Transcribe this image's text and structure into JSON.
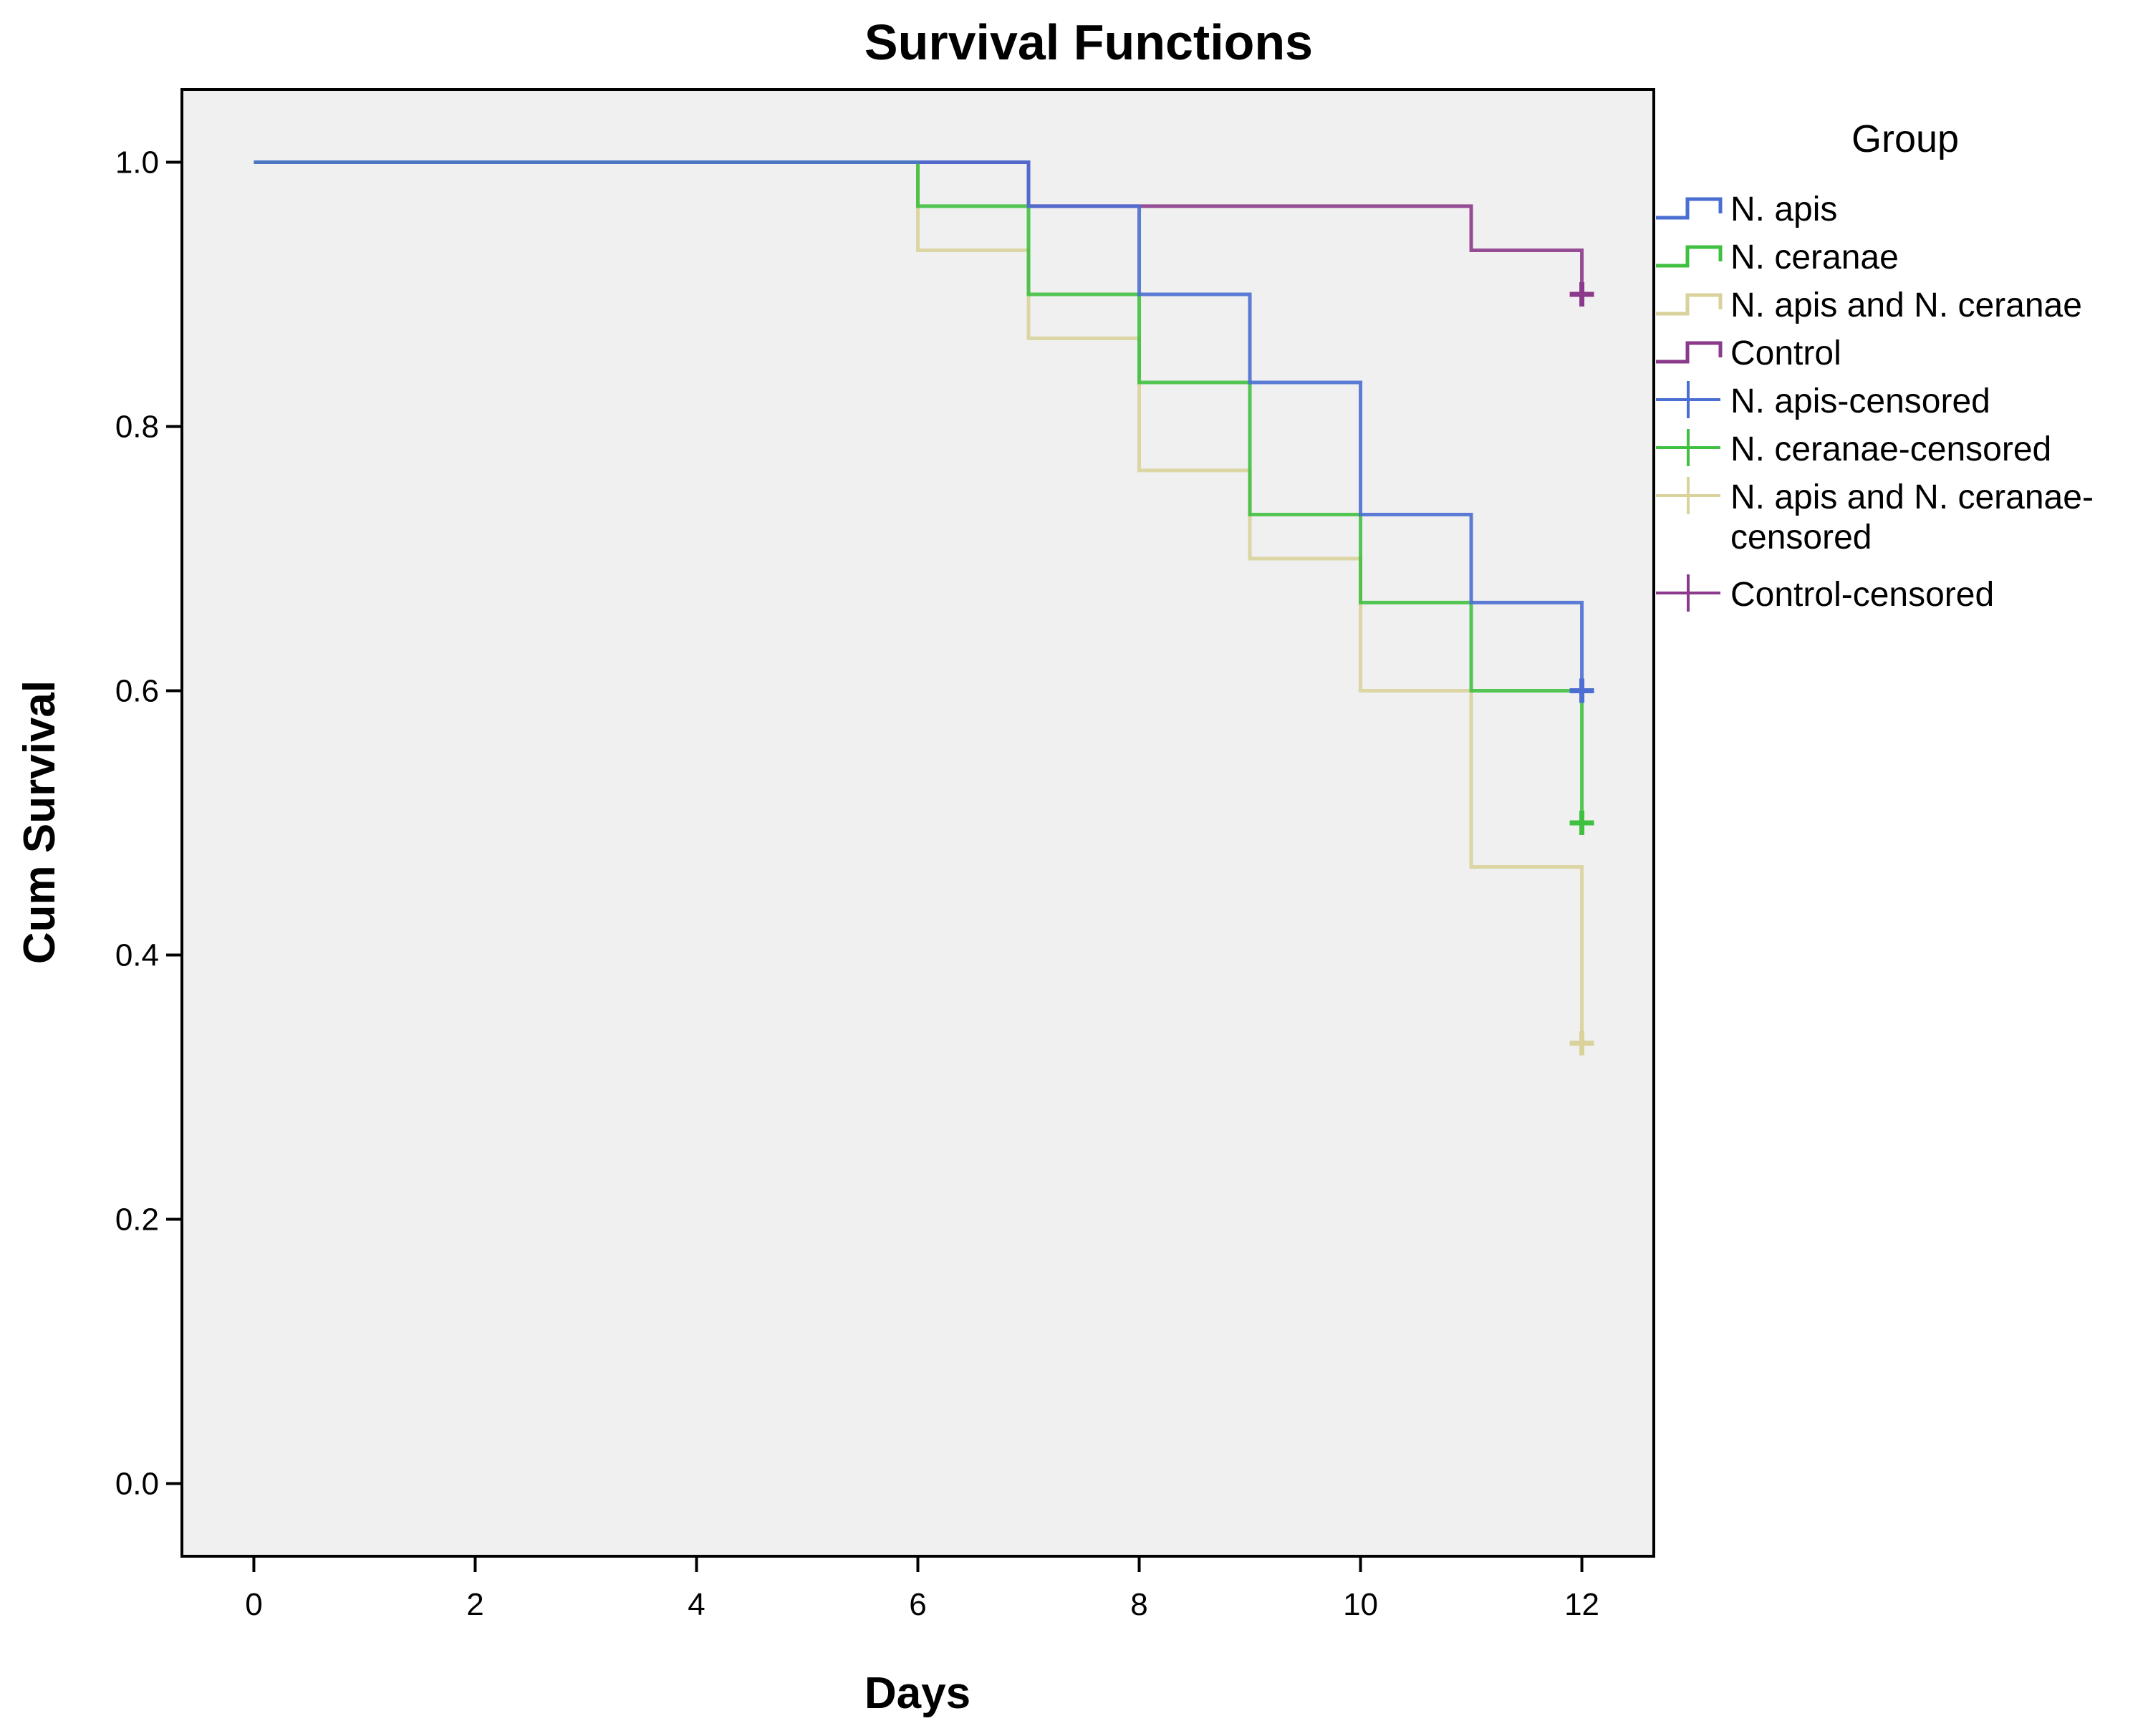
{
  "chart_data": {
    "type": "line",
    "subtype": "kaplan-meier-step",
    "title": "Survival Functions",
    "xlabel": "Days",
    "ylabel": "Cum Survival",
    "xlim": [
      -0.65,
      12.65
    ],
    "ylim": [
      -0.055,
      1.055
    ],
    "xticks": [
      0,
      2,
      4,
      6,
      8,
      10,
      12
    ],
    "xtick_labels": [
      "0",
      "2",
      "4",
      "6",
      "8",
      "10",
      "12"
    ],
    "yticks": [
      0.0,
      0.2,
      0.4,
      0.6,
      0.8,
      1.0
    ],
    "ytick_labels": [
      "0.0",
      "0.2",
      "0.4",
      "0.6",
      "0.8",
      "1.0"
    ],
    "grid": false,
    "legend": {
      "title": "Group",
      "position": "right",
      "entries": [
        {
          "label": "N. apis",
          "kind": "line",
          "color": "#4a6ed1"
        },
        {
          "label": "N. ceranae",
          "kind": "line",
          "color": "#40c040"
        },
        {
          "label": "N. apis and N. ceranae",
          "kind": "line",
          "color": "#d9d29b"
        },
        {
          "label": "Control",
          "kind": "line",
          "color": "#8b3a8b"
        },
        {
          "label": "N. apis-censored",
          "kind": "marker",
          "color": "#4a6ed1"
        },
        {
          "label": "N. ceranae-censored",
          "kind": "marker",
          "color": "#40c040"
        },
        {
          "label_lines": [
            "N. apis and N. ceranae-",
            "censored"
          ],
          "kind": "marker",
          "color": "#d9d29b"
        },
        {
          "label": "Control-censored",
          "kind": "marker",
          "color": "#8b3a8b"
        }
      ]
    },
    "series": [
      {
        "name": "N. apis",
        "color": "#4a6ed1",
        "steps": [
          [
            0,
            1.0
          ],
          [
            6,
            1.0
          ],
          [
            7,
            0.9667
          ],
          [
            8,
            0.9
          ],
          [
            9,
            0.8333
          ],
          [
            10,
            0.7333
          ],
          [
            11,
            0.6667
          ],
          [
            12,
            0.6
          ]
        ],
        "censored": [
          [
            12,
            0.6
          ]
        ]
      },
      {
        "name": "N. ceranae",
        "color": "#40c040",
        "steps": [
          [
            0,
            1.0
          ],
          [
            6,
            0.9667
          ],
          [
            7,
            0.9
          ],
          [
            8,
            0.8333
          ],
          [
            9,
            0.7333
          ],
          [
            10,
            0.6667
          ],
          [
            11,
            0.6
          ],
          [
            12,
            0.5
          ]
        ],
        "censored": [
          [
            12,
            0.5
          ]
        ]
      },
      {
        "name": "N. apis and N. ceranae",
        "color": "#d9d29b",
        "steps": [
          [
            0,
            1.0
          ],
          [
            6,
            0.9333
          ],
          [
            7,
            0.8667
          ],
          [
            8,
            0.7667
          ],
          [
            9,
            0.7
          ],
          [
            10,
            0.6
          ],
          [
            11,
            0.4667
          ],
          [
            12,
            0.3333
          ]
        ],
        "censored": [
          [
            12,
            0.3333
          ]
        ]
      },
      {
        "name": "Control",
        "color": "#8b3a8b",
        "steps": [
          [
            0,
            1.0
          ],
          [
            7,
            0.9667
          ],
          [
            11,
            0.9333
          ],
          [
            12,
            0.9
          ]
        ],
        "censored": [
          [
            12,
            0.9
          ]
        ]
      }
    ],
    "plot_background": "#f0f0f0"
  }
}
